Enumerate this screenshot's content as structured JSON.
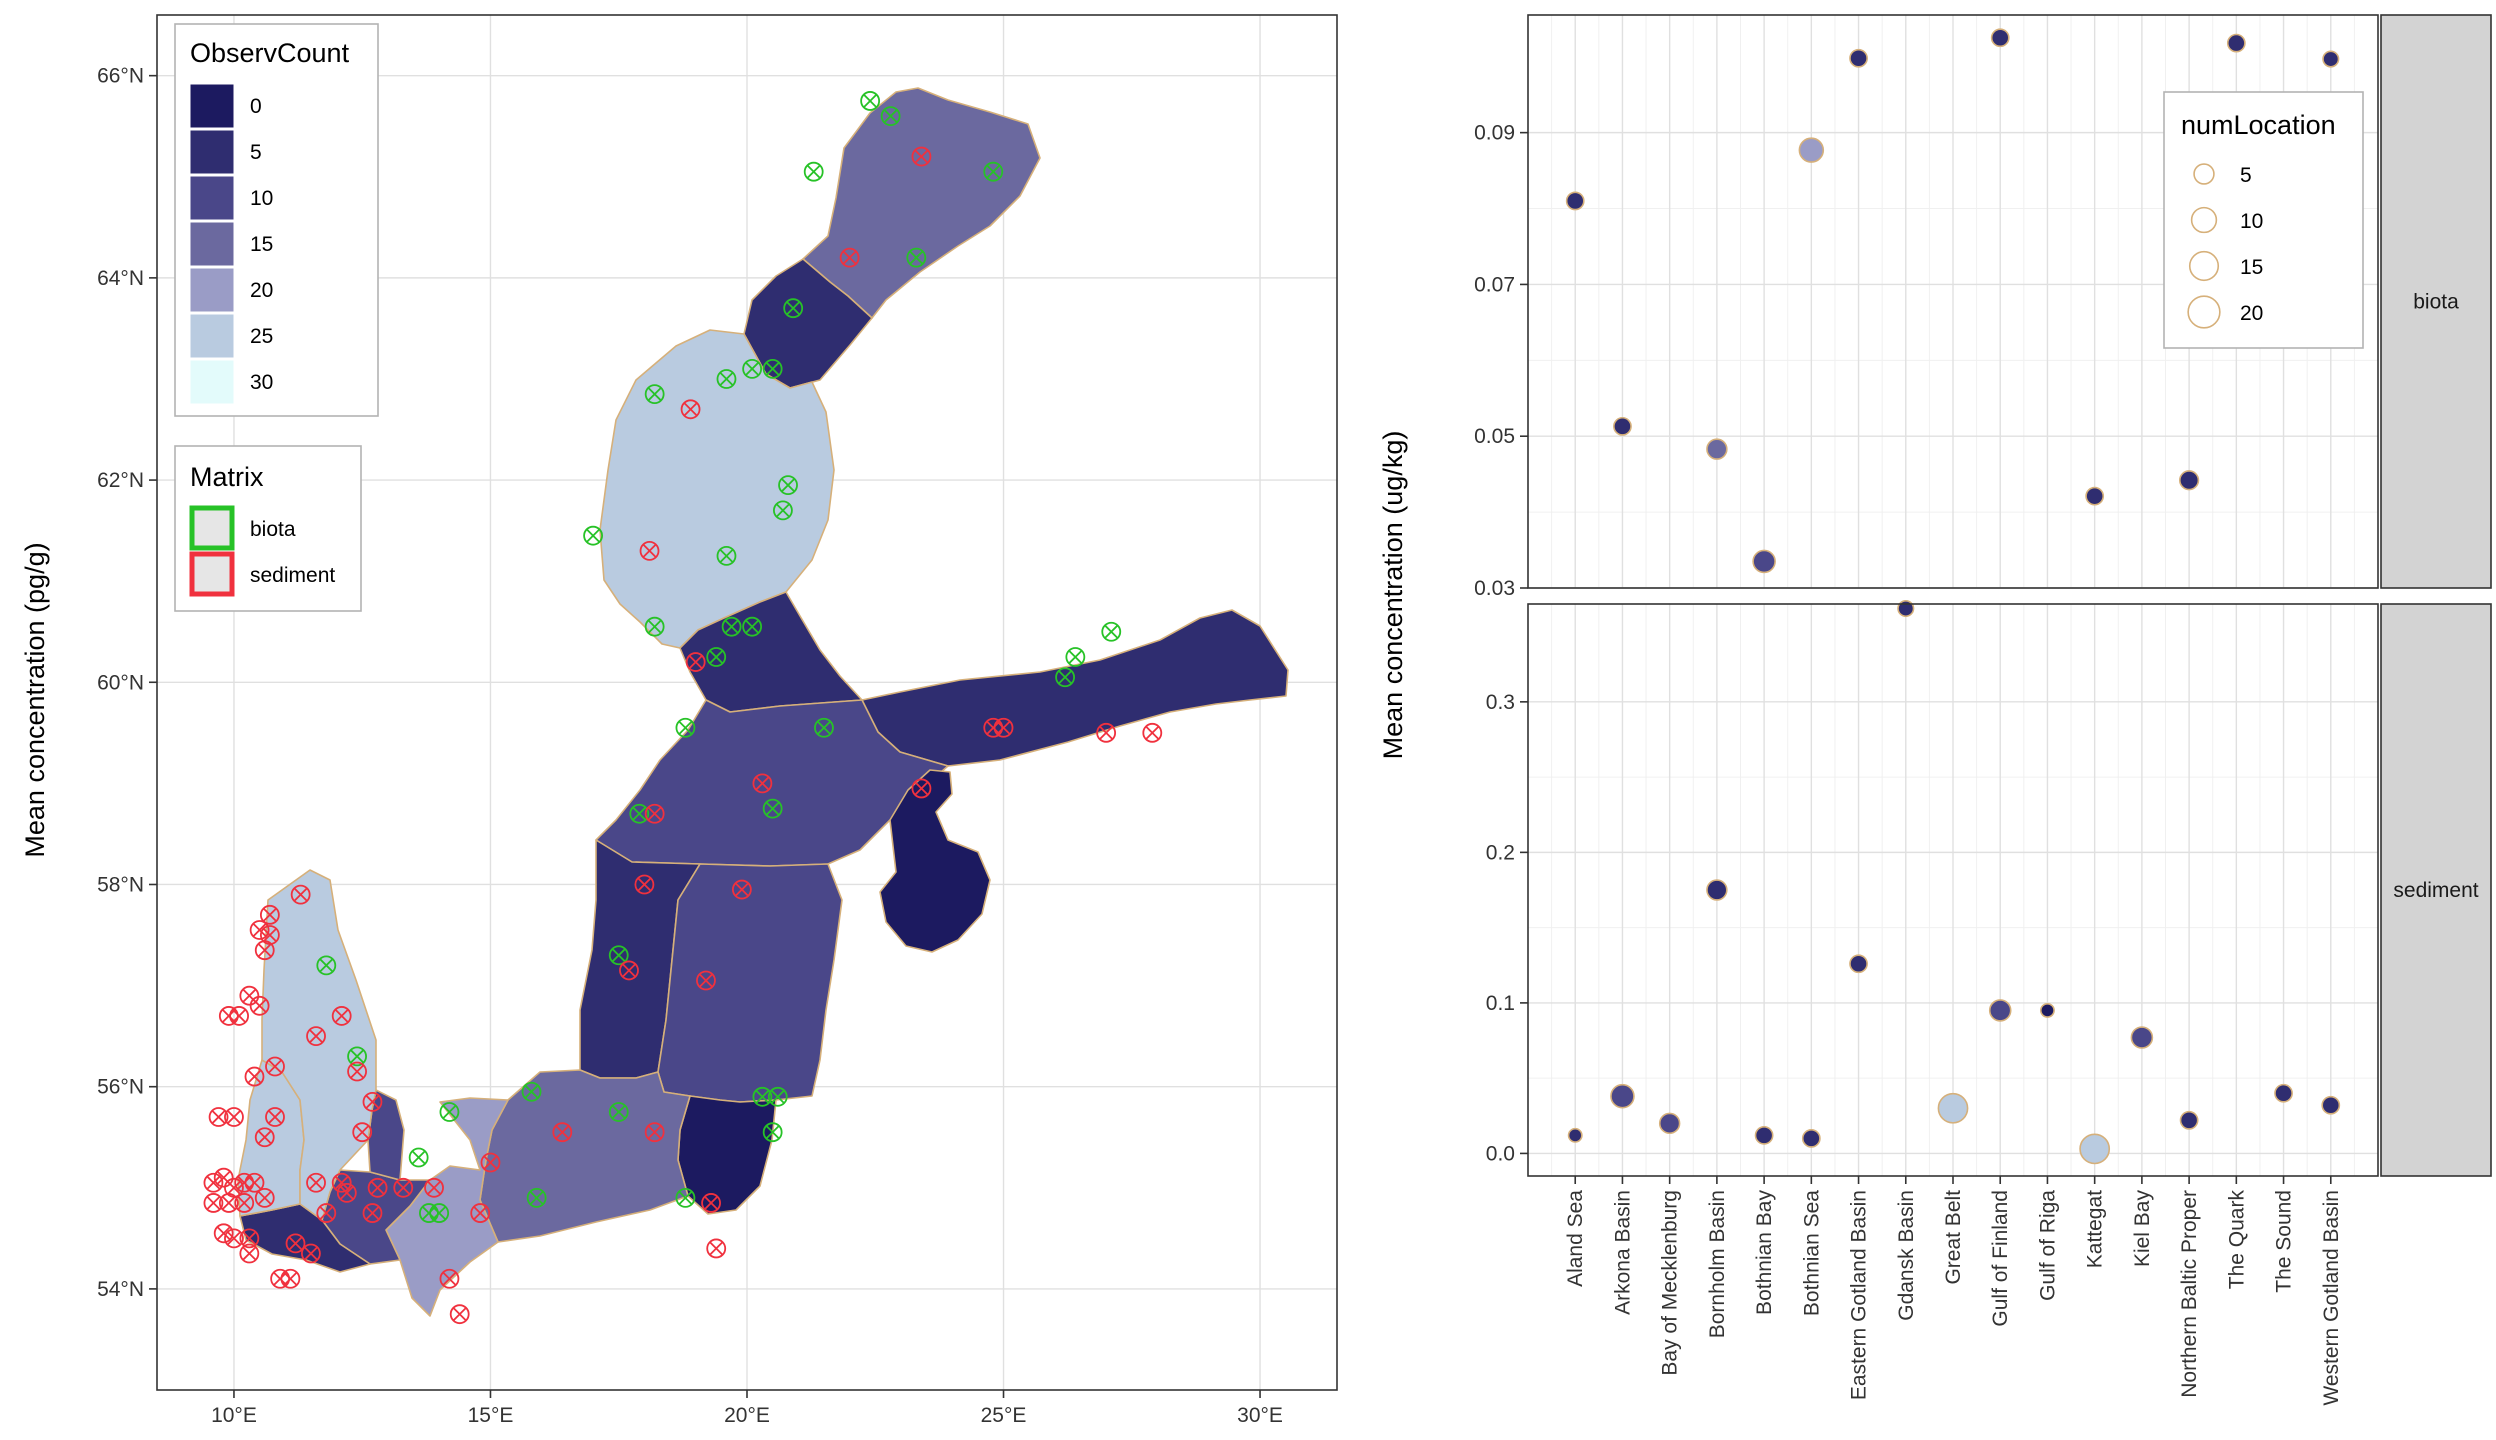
{
  "colors": {
    "observ_scale": [
      "#1c1a60",
      "#2f2d70",
      "#4a4789",
      "#6b699f",
      "#9a9cc6",
      "#b9cbe0",
      "#e3fbfb"
    ],
    "biota": "#27c227",
    "sediment": "#f0313e",
    "outline": "#d6b07a",
    "strip_fill": "#d3d3d3",
    "land_background": "#ffffff"
  },
  "chart_data": [
    {
      "type": "map",
      "ylabel": "Mean concentration (pg/g)",
      "xlim": [
        8.5,
        31.5
      ],
      "ylim": [
        53,
        66.6
      ],
      "x_ticks": [
        10,
        15,
        20,
        25,
        30
      ],
      "x_tick_labels": [
        "10°E",
        "15°E",
        "20°E",
        "25°E",
        "30°E"
      ],
      "y_ticks": [
        54,
        56,
        58,
        60,
        62,
        64,
        66
      ],
      "y_tick_labels": [
        "54°N",
        "56°N",
        "58°N",
        "60°N",
        "62°N",
        "64°N",
        "66°N"
      ],
      "legend_fill": {
        "title": "ObservCount",
        "labels": [
          "0",
          "5",
          "10",
          "15",
          "20",
          "25",
          "30"
        ]
      },
      "legend_matrix": {
        "title": "Matrix",
        "labels": [
          "biota",
          "sediment"
        ]
      },
      "regions": [
        {
          "name": "Bothnian Bay",
          "observ_count": 15
        },
        {
          "name": "The Quark",
          "observ_count": 5
        },
        {
          "name": "Bothnian Sea",
          "observ_count": 25
        },
        {
          "name": "Aland Sea",
          "observ_count": 5
        },
        {
          "name": "Gulf of Finland",
          "observ_count": 5
        },
        {
          "name": "Northern Baltic Proper",
          "observ_count": 10
        },
        {
          "name": "Western Gotland Basin",
          "observ_count": 5
        },
        {
          "name": "Eastern Gotland Basin",
          "observ_count": 10
        },
        {
          "name": "Gulf of Riga",
          "observ_count": 0
        },
        {
          "name": "Gdansk Basin",
          "observ_count": 0
        },
        {
          "name": "Bornholm Basin",
          "observ_count": 15
        },
        {
          "name": "Arkona Basin",
          "observ_count": 20
        },
        {
          "name": "Bay of Mecklenburg",
          "observ_count": 10
        },
        {
          "name": "Kiel Bay",
          "observ_count": 5
        },
        {
          "name": "Great Belt",
          "observ_count": 25
        },
        {
          "name": "The Sound",
          "observ_count": 10
        },
        {
          "name": "Kattegat",
          "observ_count": 25
        }
      ],
      "stations": [
        {
          "matrix": "biota",
          "lon": 22.4,
          "lat": 65.75
        },
        {
          "matrix": "biota",
          "lon": 22.8,
          "lat": 65.6
        },
        {
          "matrix": "biota",
          "lon": 24.8,
          "lat": 65.05
        },
        {
          "matrix": "biota",
          "lon": 21.3,
          "lat": 65.05
        },
        {
          "matrix": "biota",
          "lon": 23.3,
          "lat": 64.2
        },
        {
          "matrix": "biota",
          "lon": 20.9,
          "lat": 63.7
        },
        {
          "matrix": "biota",
          "lon": 18.2,
          "lat": 62.85
        },
        {
          "matrix": "biota",
          "lon": 19.6,
          "lat": 63.0
        },
        {
          "matrix": "biota",
          "lon": 20.1,
          "lat": 63.1
        },
        {
          "matrix": "biota",
          "lon": 20.5,
          "lat": 63.1
        },
        {
          "matrix": "biota",
          "lon": 20.8,
          "lat": 61.95
        },
        {
          "matrix": "biota",
          "lon": 20.7,
          "lat": 61.7
        },
        {
          "matrix": "biota",
          "lon": 17.0,
          "lat": 61.45
        },
        {
          "matrix": "biota",
          "lon": 19.6,
          "lat": 61.25
        },
        {
          "matrix": "biota",
          "lon": 18.2,
          "lat": 60.55
        },
        {
          "matrix": "biota",
          "lon": 19.7,
          "lat": 60.55
        },
        {
          "matrix": "biota",
          "lon": 20.1,
          "lat": 60.55
        },
        {
          "matrix": "biota",
          "lon": 19.4,
          "lat": 60.25
        },
        {
          "matrix": "biota",
          "lon": 27.1,
          "lat": 60.5
        },
        {
          "matrix": "biota",
          "lon": 26.4,
          "lat": 60.25
        },
        {
          "matrix": "biota",
          "lon": 26.2,
          "lat": 60.05
        },
        {
          "matrix": "biota",
          "lon": 18.8,
          "lat": 59.55
        },
        {
          "matrix": "biota",
          "lon": 21.5,
          "lat": 59.55
        },
        {
          "matrix": "biota",
          "lon": 20.5,
          "lat": 58.75
        },
        {
          "matrix": "biota",
          "lon": 17.9,
          "lat": 58.7
        },
        {
          "matrix": "biota",
          "lon": 17.5,
          "lat": 57.3
        },
        {
          "matrix": "biota",
          "lon": 11.8,
          "lat": 57.2
        },
        {
          "matrix": "biota",
          "lon": 12.4,
          "lat": 56.3
        },
        {
          "matrix": "biota",
          "lon": 15.8,
          "lat": 55.95
        },
        {
          "matrix": "biota",
          "lon": 20.3,
          "lat": 55.9
        },
        {
          "matrix": "biota",
          "lon": 20.6,
          "lat": 55.9
        },
        {
          "matrix": "biota",
          "lon": 20.5,
          "lat": 55.55
        },
        {
          "matrix": "biota",
          "lon": 14.2,
          "lat": 55.75
        },
        {
          "matrix": "biota",
          "lon": 17.5,
          "lat": 55.75
        },
        {
          "matrix": "biota",
          "lon": 13.6,
          "lat": 55.3
        },
        {
          "matrix": "biota",
          "lon": 15.9,
          "lat": 54.9
        },
        {
          "matrix": "biota",
          "lon": 18.8,
          "lat": 54.9
        },
        {
          "matrix": "biota",
          "lon": 13.8,
          "lat": 54.75
        },
        {
          "matrix": "biota",
          "lon": 14.0,
          "lat": 54.75
        },
        {
          "matrix": "sediment",
          "lon": 23.4,
          "lat": 65.2
        },
        {
          "matrix": "sediment",
          "lon": 22.0,
          "lat": 64.2
        },
        {
          "matrix": "sediment",
          "lon": 18.9,
          "lat": 62.7
        },
        {
          "matrix": "sediment",
          "lon": 18.1,
          "lat": 61.3
        },
        {
          "matrix": "sediment",
          "lon": 19.0,
          "lat": 60.2
        },
        {
          "matrix": "sediment",
          "lon": 24.8,
          "lat": 59.55
        },
        {
          "matrix": "sediment",
          "lon": 25.0,
          "lat": 59.55
        },
        {
          "matrix": "sediment",
          "lon": 27.0,
          "lat": 59.5
        },
        {
          "matrix": "sediment",
          "lon": 27.9,
          "lat": 59.5
        },
        {
          "matrix": "sediment",
          "lon": 23.4,
          "lat": 58.95
        },
        {
          "matrix": "sediment",
          "lon": 20.3,
          "lat": 59.0
        },
        {
          "matrix": "sediment",
          "lon": 18.2,
          "lat": 58.7
        },
        {
          "matrix": "sediment",
          "lon": 18.0,
          "lat": 58.0
        },
        {
          "matrix": "sediment",
          "lon": 19.9,
          "lat": 57.95
        },
        {
          "matrix": "sediment",
          "lon": 17.7,
          "lat": 57.15
        },
        {
          "matrix": "sediment",
          "lon": 19.2,
          "lat": 57.05
        },
        {
          "matrix": "sediment",
          "lon": 16.4,
          "lat": 55.55
        },
        {
          "matrix": "sediment",
          "lon": 18.2,
          "lat": 55.55
        },
        {
          "matrix": "sediment",
          "lon": 15.0,
          "lat": 55.25
        },
        {
          "matrix": "sediment",
          "lon": 14.8,
          "lat": 54.75
        },
        {
          "matrix": "sediment",
          "lon": 19.3,
          "lat": 54.85
        },
        {
          "matrix": "sediment",
          "lon": 19.4,
          "lat": 54.4
        },
        {
          "matrix": "sediment",
          "lon": 14.2,
          "lat": 54.1
        },
        {
          "matrix": "sediment",
          "lon": 14.4,
          "lat": 53.75
        },
        {
          "matrix": "sediment",
          "lon": 11.3,
          "lat": 57.9
        },
        {
          "matrix": "sediment",
          "lon": 10.7,
          "lat": 57.7
        },
        {
          "matrix": "sediment",
          "lon": 10.7,
          "lat": 57.5
        },
        {
          "matrix": "sediment",
          "lon": 10.5,
          "lat": 57.55
        },
        {
          "matrix": "sediment",
          "lon": 10.6,
          "lat": 57.35
        },
        {
          "matrix": "sediment",
          "lon": 10.3,
          "lat": 56.9
        },
        {
          "matrix": "sediment",
          "lon": 10.5,
          "lat": 56.8
        },
        {
          "matrix": "sediment",
          "lon": 9.9,
          "lat": 56.7
        },
        {
          "matrix": "sediment",
          "lon": 10.1,
          "lat": 56.7
        },
        {
          "matrix": "sediment",
          "lon": 11.6,
          "lat": 56.5
        },
        {
          "matrix": "sediment",
          "lon": 12.1,
          "lat": 56.7
        },
        {
          "matrix": "sediment",
          "lon": 10.8,
          "lat": 56.2
        },
        {
          "matrix": "sediment",
          "lon": 10.4,
          "lat": 56.1
        },
        {
          "matrix": "sediment",
          "lon": 12.4,
          "lat": 56.15
        },
        {
          "matrix": "sediment",
          "lon": 12.7,
          "lat": 55.85
        },
        {
          "matrix": "sediment",
          "lon": 9.7,
          "lat": 55.7
        },
        {
          "matrix": "sediment",
          "lon": 10.0,
          "lat": 55.7
        },
        {
          "matrix": "sediment",
          "lon": 10.8,
          "lat": 55.7
        },
        {
          "matrix": "sediment",
          "lon": 10.6,
          "lat": 55.5
        },
        {
          "matrix": "sediment",
          "lon": 12.5,
          "lat": 55.55
        },
        {
          "matrix": "sediment",
          "lon": 9.6,
          "lat": 55.05
        },
        {
          "matrix": "sediment",
          "lon": 9.8,
          "lat": 55.1
        },
        {
          "matrix": "sediment",
          "lon": 10.0,
          "lat": 55.0
        },
        {
          "matrix": "sediment",
          "lon": 10.2,
          "lat": 55.05
        },
        {
          "matrix": "sediment",
          "lon": 10.4,
          "lat": 55.05
        },
        {
          "matrix": "sediment",
          "lon": 9.6,
          "lat": 54.85
        },
        {
          "matrix": "sediment",
          "lon": 9.9,
          "lat": 54.85
        },
        {
          "matrix": "sediment",
          "lon": 10.2,
          "lat": 54.85
        },
        {
          "matrix": "sediment",
          "lon": 10.6,
          "lat": 54.9
        },
        {
          "matrix": "sediment",
          "lon": 11.6,
          "lat": 55.05
        },
        {
          "matrix": "sediment",
          "lon": 12.1,
          "lat": 55.05
        },
        {
          "matrix": "sediment",
          "lon": 12.2,
          "lat": 54.95
        },
        {
          "matrix": "sediment",
          "lon": 12.8,
          "lat": 55.0
        },
        {
          "matrix": "sediment",
          "lon": 13.3,
          "lat": 55.0
        },
        {
          "matrix": "sediment",
          "lon": 13.9,
          "lat": 55.0
        },
        {
          "matrix": "sediment",
          "lon": 9.8,
          "lat": 54.55
        },
        {
          "matrix": "sediment",
          "lon": 10.3,
          "lat": 54.5
        },
        {
          "matrix": "sediment",
          "lon": 10.0,
          "lat": 54.5
        },
        {
          "matrix": "sediment",
          "lon": 11.8,
          "lat": 54.75
        },
        {
          "matrix": "sediment",
          "lon": 12.7,
          "lat": 54.75
        },
        {
          "matrix": "sediment",
          "lon": 11.2,
          "lat": 54.45
        },
        {
          "matrix": "sediment",
          "lon": 11.5,
          "lat": 54.35
        },
        {
          "matrix": "sediment",
          "lon": 10.3,
          "lat": 54.35
        },
        {
          "matrix": "sediment",
          "lon": 10.9,
          "lat": 54.1
        },
        {
          "matrix": "sediment",
          "lon": 11.1,
          "lat": 54.1
        }
      ]
    },
    {
      "type": "scatter",
      "xlabel": "",
      "ylabel": "Mean concentration (ug/kg)",
      "categories": [
        "Aland Sea",
        "Arkona Basin",
        "Bay of Mecklenburg",
        "Bornholm Basin",
        "Bothnian Bay",
        "Bothnian Sea",
        "Eastern Gotland Basin",
        "Gdansk Basin",
        "Great Belt",
        "Gulf of Finland",
        "Gulf of Riga",
        "Kattegat",
        "Kiel Bay",
        "Northern Baltic Proper",
        "The Quark",
        "The Sound",
        "Western Gotland Basin"
      ],
      "legend_size": {
        "title": "numLocation",
        "labels": [
          "5",
          "10",
          "15",
          "20"
        ],
        "values": [
          5,
          10,
          15,
          20
        ]
      },
      "grid": true,
      "facets": [
        {
          "strip": "biota",
          "ylim": [
            0.03,
            0.1055
          ],
          "y_ticks": [
            0.03,
            0.05,
            0.07,
            0.09
          ],
          "y_tick_labels": [
            "0.03",
            "0.05",
            "0.07",
            "0.09"
          ],
          "points": [
            {
              "category": "Aland Sea",
              "value": 0.081,
              "numLocation": 3,
              "observ_count": 5
            },
            {
              "category": "Arkona Basin",
              "value": 0.0513,
              "numLocation": 3,
              "observ_count": 5
            },
            {
              "category": "Bornholm Basin",
              "value": 0.0483,
              "numLocation": 5,
              "observ_count": 15
            },
            {
              "category": "Bothnian Bay",
              "value": 0.0335,
              "numLocation": 7,
              "observ_count": 10
            },
            {
              "category": "Bothnian Sea",
              "value": 0.0877,
              "numLocation": 9,
              "observ_count": 20
            },
            {
              "category": "Eastern Gotland Basin",
              "value": 0.0998,
              "numLocation": 3,
              "observ_count": 5
            },
            {
              "category": "Gulf of Finland",
              "value": 0.1025,
              "numLocation": 3,
              "observ_count": 5
            },
            {
              "category": "Kattegat",
              "value": 0.0421,
              "numLocation": 3,
              "observ_count": 5
            },
            {
              "category": "Northern Baltic Proper",
              "value": 0.0442,
              "numLocation": 4,
              "observ_count": 5
            },
            {
              "category": "The Quark",
              "value": 0.1018,
              "numLocation": 3,
              "observ_count": 5
            },
            {
              "category": "Western Gotland Basin",
              "value": 0.0997,
              "numLocation": 2,
              "observ_count": 5
            }
          ]
        },
        {
          "strip": "sediment",
          "ylim": [
            -0.015,
            0.365
          ],
          "y_ticks": [
            0.0,
            0.1,
            0.2,
            0.3
          ],
          "y_tick_labels": [
            "0.0",
            "0.1",
            "0.2",
            "0.3"
          ],
          "points": [
            {
              "category": "Aland Sea",
              "value": 0.012,
              "numLocation": 1,
              "observ_count": 5
            },
            {
              "category": "Arkona Basin",
              "value": 0.038,
              "numLocation": 8,
              "observ_count": 10
            },
            {
              "category": "Bay of Mecklenburg",
              "value": 0.02,
              "numLocation": 5,
              "observ_count": 10
            },
            {
              "category": "Bornholm Basin",
              "value": 0.175,
              "numLocation": 5,
              "observ_count": 5
            },
            {
              "category": "Bothnian Bay",
              "value": 0.012,
              "numLocation": 3,
              "observ_count": 5
            },
            {
              "category": "Bothnian Sea",
              "value": 0.01,
              "numLocation": 3,
              "observ_count": 5
            },
            {
              "category": "Eastern Gotland Basin",
              "value": 0.126,
              "numLocation": 3,
              "observ_count": 5
            },
            {
              "category": "Gdansk Basin",
              "value": 0.362,
              "numLocation": 2,
              "observ_count": 5
            },
            {
              "category": "Great Belt",
              "value": 0.03,
              "numLocation": 16,
              "observ_count": 25
            },
            {
              "category": "Gulf of Finland",
              "value": 0.095,
              "numLocation": 6,
              "observ_count": 10
            },
            {
              "category": "Gulf of Riga",
              "value": 0.095,
              "numLocation": 1,
              "observ_count": 0
            },
            {
              "category": "Kattegat",
              "value": 0.003,
              "numLocation": 16,
              "observ_count": 25
            },
            {
              "category": "Kiel Bay",
              "value": 0.077,
              "numLocation": 6,
              "observ_count": 10
            },
            {
              "category": "Northern Baltic Proper",
              "value": 0.022,
              "numLocation": 3,
              "observ_count": 5
            },
            {
              "category": "The Sound",
              "value": 0.04,
              "numLocation": 3,
              "observ_count": 5
            },
            {
              "category": "Western Gotland Basin",
              "value": 0.032,
              "numLocation": 3,
              "observ_count": 5
            }
          ]
        }
      ]
    }
  ]
}
